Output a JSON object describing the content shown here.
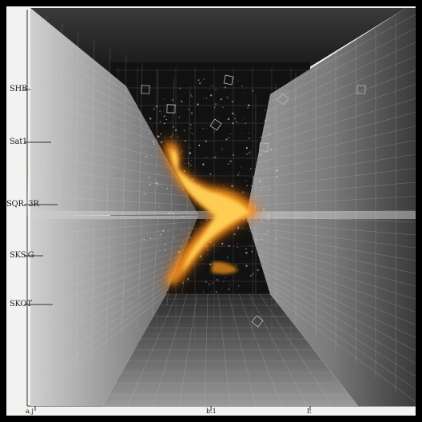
{
  "image": {
    "description_colors": {
      "background": "#f2f2f0",
      "frame": "#000000",
      "chamber_dark": "#141414",
      "wall_mid": "#6e6e6e",
      "wall_light": "#b9b9b9",
      "flame_core": "#ffd45a",
      "flame_outer": "#e8680c"
    }
  },
  "left_axis": {
    "labels": [
      "SHB",
      "Sat1",
      "SQR. 3R",
      "SKS.G",
      "SKOT"
    ]
  },
  "bottom_axis": {
    "labels": [
      "a.j",
      "b.1",
      "L"
    ]
  }
}
